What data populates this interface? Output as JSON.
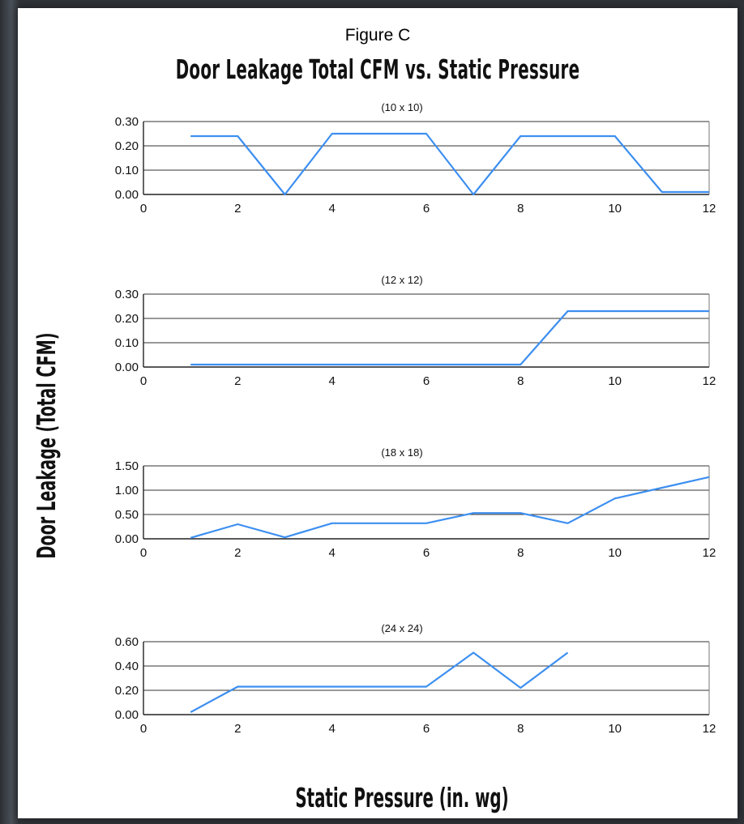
{
  "figure_label": "Figure C",
  "chart_data": [
    {
      "type": "line",
      "title": "(10 x 10)",
      "x": [
        1,
        2,
        3,
        4,
        6,
        7,
        8,
        10,
        11,
        12
      ],
      "y": [
        0.24,
        0.24,
        0.0,
        0.25,
        0.25,
        0.0,
        0.24,
        0.24,
        0.01,
        0.01
      ],
      "xlim": [
        0,
        12
      ],
      "ylim": [
        0,
        0.3
      ],
      "xticks": [
        "0",
        "2",
        "4",
        "6",
        "8",
        "10",
        "12"
      ],
      "yticks": [
        "0.00",
        "0.10",
        "0.20",
        "0.30"
      ],
      "grid": true,
      "color": "#3d8ff0"
    },
    {
      "type": "line",
      "title": "(12 x 12)",
      "x": [
        1,
        8,
        9,
        12
      ],
      "y": [
        0.01,
        0.01,
        0.23,
        0.23
      ],
      "xlim": [
        0,
        12
      ],
      "ylim": [
        0,
        0.3
      ],
      "xticks": [
        "0",
        "2",
        "4",
        "6",
        "8",
        "10",
        "12"
      ],
      "yticks": [
        "0.00",
        "0.10",
        "0.20",
        "0.30"
      ],
      "grid": true,
      "color": "#3d8ff0"
    },
    {
      "type": "line",
      "title": "(18 x 18)",
      "x": [
        1,
        2,
        3,
        4,
        6,
        7,
        8,
        9,
        10,
        11,
        12
      ],
      "y": [
        0.02,
        0.3,
        0.03,
        0.32,
        0.32,
        0.53,
        0.53,
        0.32,
        0.83,
        1.05,
        1.27
      ],
      "xlim": [
        0,
        12
      ],
      "ylim": [
        0,
        1.5
      ],
      "xticks": [
        "0",
        "2",
        "4",
        "6",
        "8",
        "10",
        "12"
      ],
      "yticks": [
        "0.00",
        "0.50",
        "1.00",
        "1.50"
      ],
      "grid": true,
      "color": "#3d8ff0"
    },
    {
      "type": "line",
      "title": "(24 x 24)",
      "x": [
        1,
        2,
        6,
        7,
        8,
        9
      ],
      "y": [
        0.02,
        0.23,
        0.23,
        0.51,
        0.22,
        0.51
      ],
      "xlim": [
        0,
        12
      ],
      "ylim": [
        0,
        0.6
      ],
      "xticks": [
        "0",
        "2",
        "4",
        "6",
        "8",
        "10",
        "12"
      ],
      "yticks": [
        "0.00",
        "0.20",
        "0.40",
        "0.60"
      ],
      "grid": true,
      "color": "#3d8ff0"
    }
  ],
  "main_title": "Door Leakage Total CFM vs. Static Pressure",
  "y_axis_label": "Door Leakage (Total CFM)",
  "x_axis_label": "Static Pressure (in. wg)"
}
